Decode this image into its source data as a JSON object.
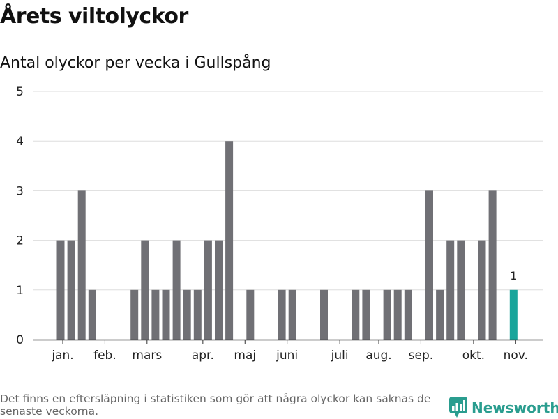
{
  "title": "Årets viltolyckor",
  "subtitle": "Antal olyckor per vecka i Gullspång",
  "footnote": "Det finns en eftersläpning i statistiken som gör att några olyckor kan saknas de senaste veckorna.",
  "brand": {
    "name": "Newsworthy",
    "logo_icon": "newsworthy-chart-logo-icon"
  },
  "colors": {
    "bar": "#707075",
    "highlight": "#19a59b",
    "grid": "#dddddd",
    "axis": "#333333",
    "brand": "#2a9d8f"
  },
  "chart_data": {
    "type": "bar",
    "x": [
      1,
      2,
      3,
      4,
      5,
      6,
      7,
      8,
      9,
      10,
      11,
      12,
      13,
      14,
      15,
      16,
      17,
      18,
      19,
      20,
      21,
      22,
      23,
      24,
      25,
      26,
      27,
      28,
      29,
      30,
      31,
      32,
      33,
      34,
      35,
      36,
      37,
      38,
      39,
      40,
      41,
      42,
      43,
      44
    ],
    "values": [
      2,
      2,
      3,
      1,
      0,
      0,
      0,
      1,
      2,
      1,
      1,
      2,
      1,
      1,
      2,
      2,
      4,
      0,
      1,
      0,
      0,
      1,
      1,
      0,
      0,
      1,
      0,
      0,
      1,
      1,
      0,
      1,
      1,
      1,
      0,
      3,
      1,
      2,
      2,
      0,
      2,
      3,
      0,
      1
    ],
    "highlight_index": 43,
    "highlight_label": "1",
    "yticks": [
      0,
      1,
      2,
      3,
      4,
      5
    ],
    "ylim": [
      0,
      5
    ],
    "month_ticks": [
      {
        "label": "jan.",
        "x": 1.2
      },
      {
        "label": "feb.",
        "x": 5.2
      },
      {
        "label": "mars",
        "x": 9.2
      },
      {
        "label": "apr.",
        "x": 14.5
      },
      {
        "label": "maj",
        "x": 18.5
      },
      {
        "label": "juni",
        "x": 22.5
      },
      {
        "label": "juli",
        "x": 27.5
      },
      {
        "label": "aug.",
        "x": 31.2
      },
      {
        "label": "sep.",
        "x": 35.2
      },
      {
        "label": "okt.",
        "x": 40.2
      },
      {
        "label": "nov.",
        "x": 44.2
      }
    ],
    "grid": true
  }
}
